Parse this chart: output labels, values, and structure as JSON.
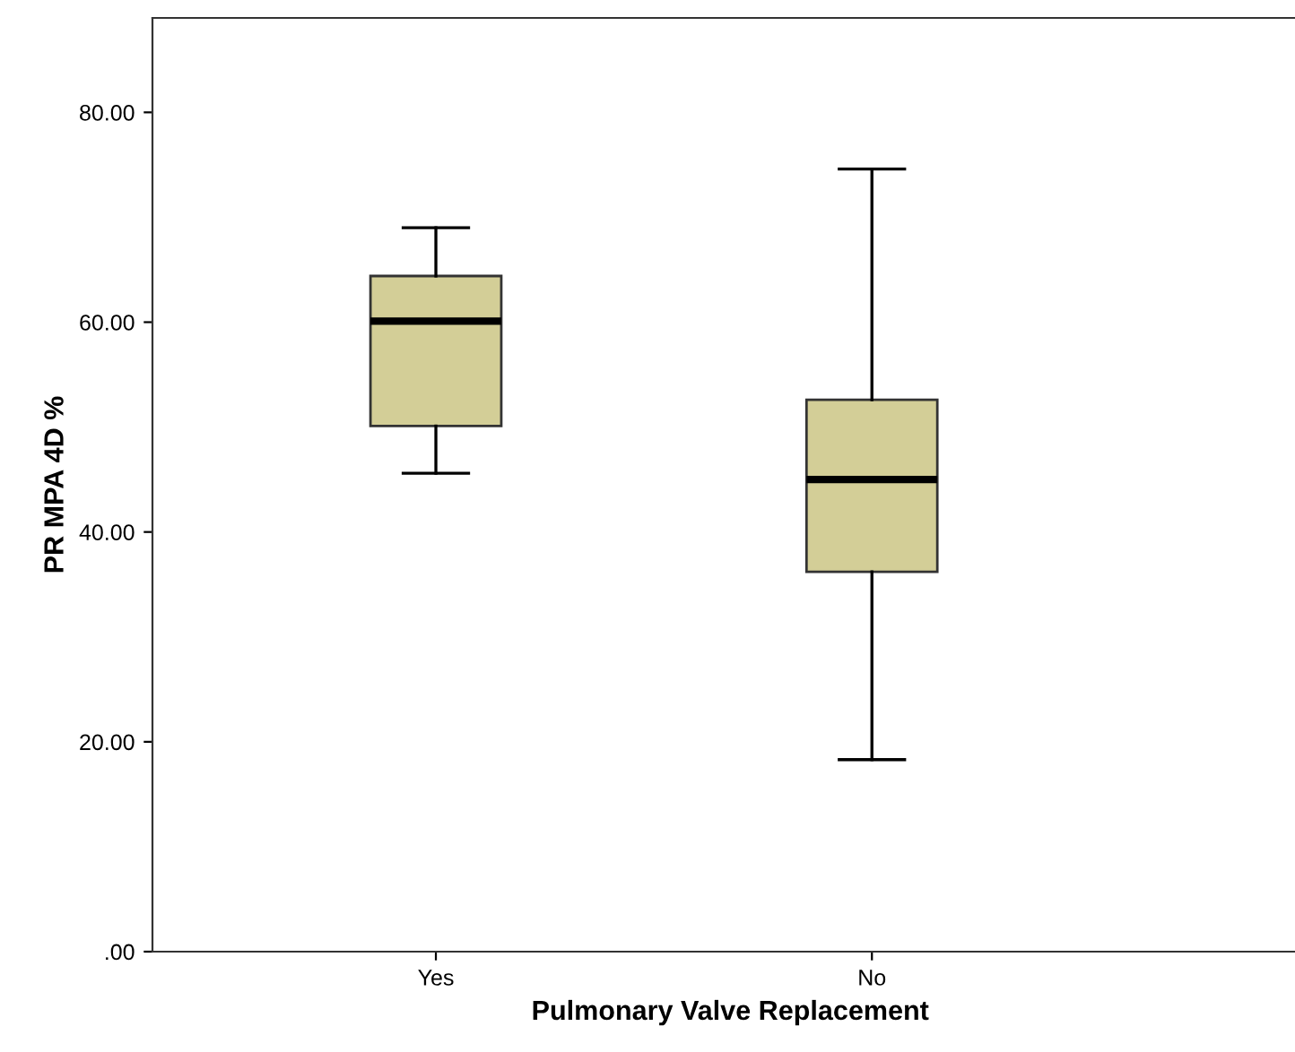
{
  "chart_data": {
    "type": "box",
    "xlabel": "Pulmonary Valve Replacement",
    "ylabel": "PR MPA 4D %",
    "categories": [
      "Yes",
      "No"
    ],
    "series": [
      {
        "color": "#d3ce97",
        "boxes": [
          {
            "low": 45.6,
            "q1": 50.1,
            "median": 60.1,
            "q3": 64.4,
            "high": 69.0
          },
          {
            "low": 18.3,
            "q1": 36.2,
            "median": 45.0,
            "q3": 52.6,
            "high": 74.6
          }
        ]
      }
    ],
    "ylim": [
      0,
      89
    ],
    "yticks": [
      {
        "value": 0,
        "label": ".00"
      },
      {
        "value": 20,
        "label": "20.00"
      },
      {
        "value": 40,
        "label": "40.00"
      },
      {
        "value": 60,
        "label": "60.00"
      },
      {
        "value": 80,
        "label": "80.00"
      }
    ],
    "grid": false,
    "legend": false
  }
}
